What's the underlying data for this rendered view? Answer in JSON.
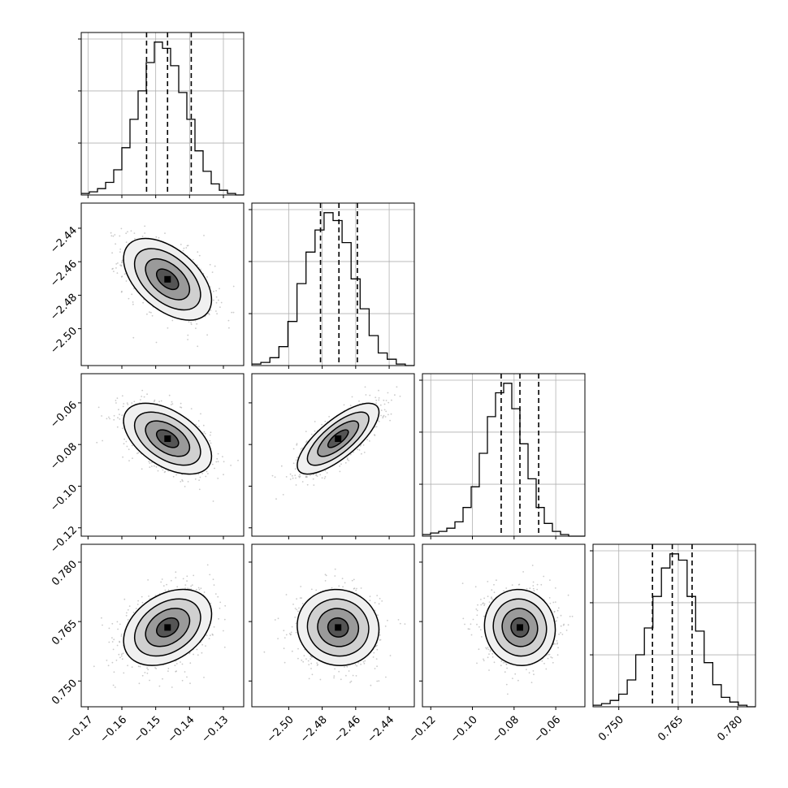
{
  "chart_data": {
    "type": "corner",
    "parameters": [
      {
        "range": [
          -0.172,
          -0.124
        ],
        "ticks": [
          -0.17,
          -0.16,
          -0.15,
          -0.14,
          -0.13
        ],
        "tick_labels": [
          "−0.17",
          "−0.16",
          "−0.15",
          "−0.14",
          "−0.13"
        ],
        "quantiles": [
          -0.1527,
          -0.1465,
          -0.1395
        ],
        "mean": -0.1465,
        "sigma": 0.0065,
        "hist": [
          1,
          2,
          4,
          8,
          16,
          30,
          48,
          66,
          84,
          97,
          93,
          82,
          65,
          48,
          28,
          15,
          7,
          3,
          1,
          0
        ]
      },
      {
        "range": [
          -2.522,
          -2.425
        ],
        "ticks": [
          -2.5,
          -2.48,
          -2.46,
          -2.44
        ],
        "tick_labels": [
          "−2.50",
          "−2.48",
          "−2.46",
          "−2.44"
        ],
        "quantiles": [
          -2.481,
          -2.47,
          -2.459
        ],
        "mean": -2.4705,
        "sigma": 0.0122,
        "hist": [
          1,
          2,
          5,
          12,
          28,
          52,
          72,
          86,
          97,
          92,
          78,
          55,
          36,
          19,
          8,
          4,
          1,
          0
        ]
      },
      {
        "range": [
          -0.124,
          -0.046
        ],
        "ticks": [
          -0.12,
          -0.1,
          -0.08,
          -0.06
        ],
        "tick_labels": [
          "−0.12",
          "−0.10",
          "−0.08",
          "−0.06"
        ],
        "quantiles": [
          -0.0862,
          -0.0772,
          -0.0682
        ],
        "mean": -0.0772,
        "sigma": 0.0085,
        "hist": [
          1,
          2,
          3,
          5,
          9,
          18,
          31,
          52,
          75,
          90,
          96,
          80,
          58,
          36,
          18,
          8,
          3,
          1,
          0,
          0
        ]
      },
      {
        "range": [
          0.7435,
          0.7845
        ],
        "ticks": [
          0.75,
          0.765,
          0.78
        ],
        "tick_labels": [
          "0.750",
          "0.765",
          "0.780"
        ],
        "quantiles": [
          0.7585,
          0.7635,
          0.7685
        ],
        "mean": 0.7635,
        "sigma": 0.0048,
        "hist": [
          1,
          2,
          4,
          8,
          17,
          33,
          50,
          70,
          88,
          97,
          93,
          70,
          48,
          28,
          14,
          6,
          3,
          1,
          0
        ]
      }
    ],
    "correlations": [
      {
        "row": 1,
        "col": 0,
        "rho": -0.5
      },
      {
        "row": 2,
        "col": 0,
        "rho": -0.5
      },
      {
        "row": 2,
        "col": 1,
        "rho": 0.75
      },
      {
        "row": 3,
        "col": 0,
        "rho": 0.35
      },
      {
        "row": 3,
        "col": 1,
        "rho": -0.05
      },
      {
        "row": 3,
        "col": 2,
        "rho": -0.05
      }
    ],
    "contour_levels_sigma": [
      0.5,
      1.0,
      1.5,
      2.0
    ],
    "grid": true,
    "colors": {
      "line": "#000000",
      "points": "#9e9e9e",
      "grid": "#b0b0b0",
      "frame": "#000000"
    }
  }
}
